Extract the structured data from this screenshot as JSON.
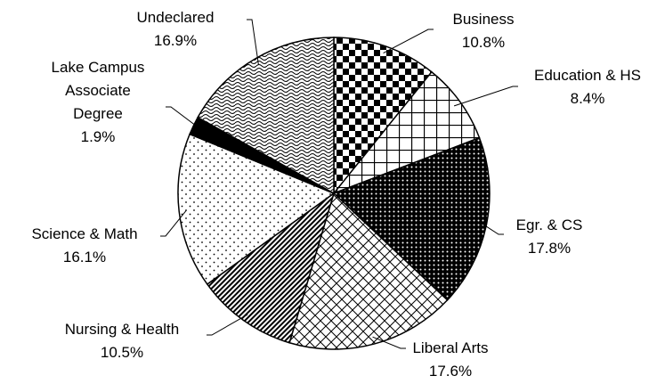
{
  "chart_data": {
    "type": "pie",
    "categories": [
      "Business",
      "Education & HS",
      "Egr. & CS",
      "Liberal Arts",
      "Nursing & Health",
      "Science & Math",
      "Lake Campus Associate Degree",
      "Undeclared"
    ],
    "values": [
      10.8,
      8.4,
      17.8,
      17.6,
      10.5,
      16.1,
      1.9,
      16.9
    ],
    "value_labels": [
      "10.8%",
      "8.4%",
      "17.8%",
      "17.6%",
      "10.5%",
      "16.1%",
      "1.9%",
      "16.9%"
    ]
  }
}
